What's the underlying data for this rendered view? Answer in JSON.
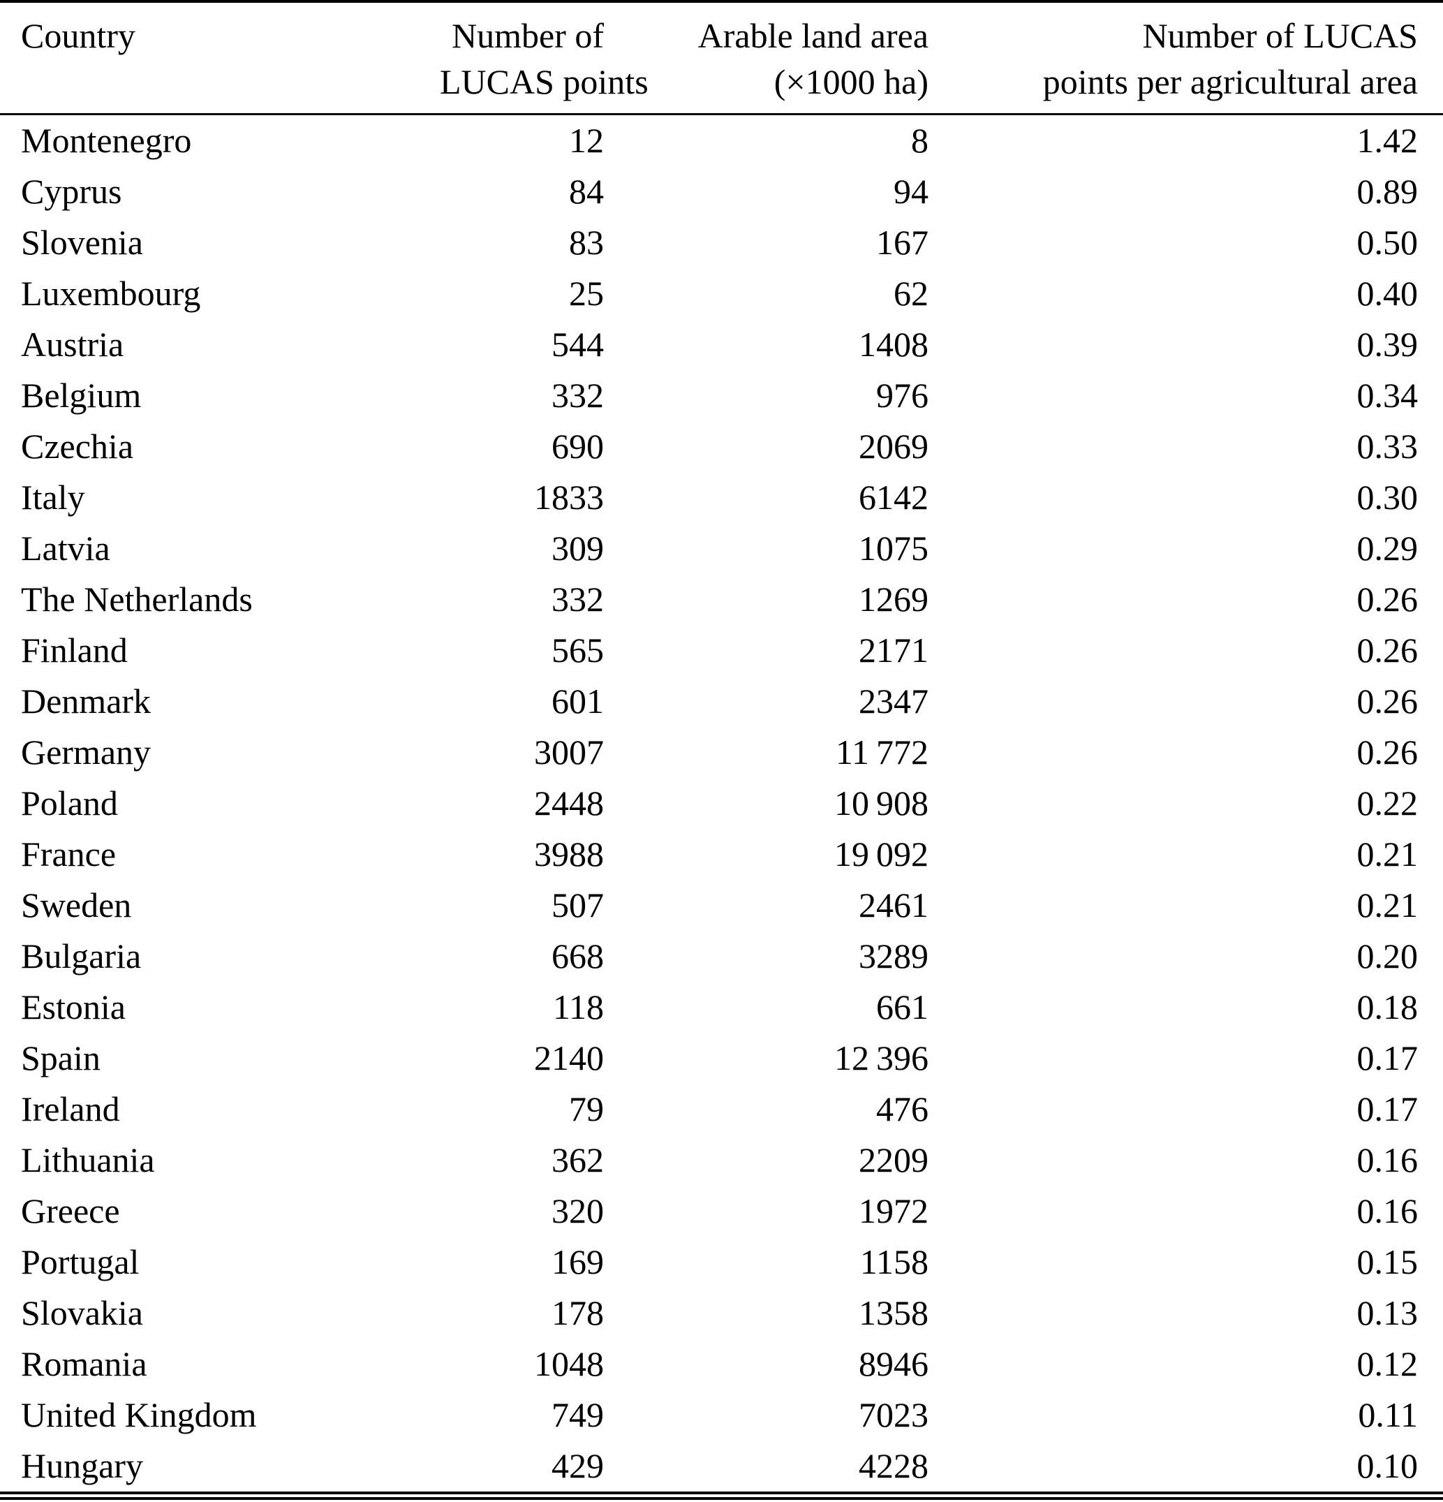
{
  "table": {
    "columns": [
      {
        "name": "country",
        "align": "left",
        "label_lines": [
          "Country"
        ]
      },
      {
        "name": "lucas-points",
        "align": "right",
        "label_lines": [
          "Number of",
          "LUCAS points"
        ]
      },
      {
        "name": "arable-land-area",
        "align": "right",
        "label_lines": [
          "Arable land area",
          "(×1000 ha)"
        ]
      },
      {
        "name": "points-per-agricultural-area",
        "align": "right",
        "label_lines": [
          "Number of LUCAS",
          "points per agricultural area"
        ]
      }
    ],
    "rows": [
      [
        "Montenegro",
        "12",
        "8",
        "1.42"
      ],
      [
        "Cyprus",
        "84",
        "94",
        "0.89"
      ],
      [
        "Slovenia",
        "83",
        "167",
        "0.50"
      ],
      [
        "Luxembourg",
        "25",
        "62",
        "0.40"
      ],
      [
        "Austria",
        "544",
        "1408",
        "0.39"
      ],
      [
        "Belgium",
        "332",
        "976",
        "0.34"
      ],
      [
        "Czechia",
        "690",
        "2069",
        "0.33"
      ],
      [
        "Italy",
        "1833",
        "6142",
        "0.30"
      ],
      [
        "Latvia",
        "309",
        "1075",
        "0.29"
      ],
      [
        "The Netherlands",
        "332",
        "1269",
        "0.26"
      ],
      [
        "Finland",
        "565",
        "2171",
        "0.26"
      ],
      [
        "Denmark",
        "601",
        "2347",
        "0.26"
      ],
      [
        "Germany",
        "3007",
        "11 772",
        "0.26"
      ],
      [
        "Poland",
        "2448",
        "10 908",
        "0.22"
      ],
      [
        "France",
        "3988",
        "19 092",
        "0.21"
      ],
      [
        "Sweden",
        "507",
        "2461",
        "0.21"
      ],
      [
        "Bulgaria",
        "668",
        "3289",
        "0.20"
      ],
      [
        "Estonia",
        "118",
        "661",
        "0.18"
      ],
      [
        "Spain",
        "2140",
        "12 396",
        "0.17"
      ],
      [
        "Ireland",
        "79",
        "476",
        "0.17"
      ],
      [
        "Lithuania",
        "362",
        "2209",
        "0.16"
      ],
      [
        "Greece",
        "320",
        "1972",
        "0.16"
      ],
      [
        "Portugal",
        "169",
        "1158",
        "0.15"
      ],
      [
        "Slovakia",
        "178",
        "1358",
        "0.13"
      ],
      [
        "Romania",
        "1048",
        "8946",
        "0.12"
      ],
      [
        "United Kingdom",
        "749",
        "7023",
        "0.11"
      ],
      [
        "Hungary",
        "429",
        "4228",
        "0.10"
      ]
    ]
  }
}
